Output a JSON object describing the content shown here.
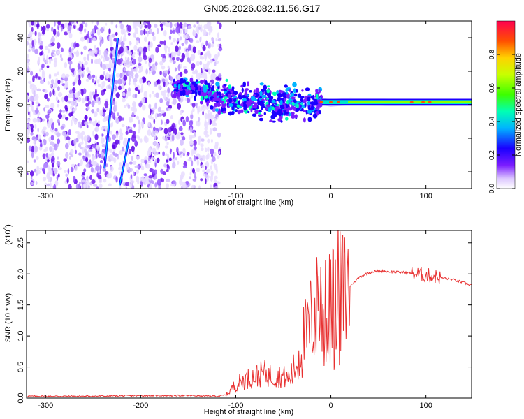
{
  "title": "GN05.2026.082.11.56.G17",
  "chart_data": [
    {
      "type": "heatmap",
      "name": "spectrogram",
      "xlabel": "Height of straight line (km)",
      "ylabel": "Frequency (Hz)",
      "xlim": [
        -320,
        148
      ],
      "ylim": [
        -50,
        50
      ],
      "xticks": [
        -300,
        -200,
        -100,
        0,
        100
      ],
      "yticks": [
        -40,
        -20,
        0,
        20,
        40
      ],
      "xtick_labels": [
        "-300",
        "-200",
        "-100",
        "0",
        "100"
      ],
      "ytick_labels": [
        "-40",
        "-20",
        "0",
        "20",
        "40"
      ],
      "noise_region_x": [
        -320,
        -122
      ],
      "signal_track": {
        "x": [
          -165,
          -140,
          -120,
          -100,
          -80,
          -60,
          -40,
          -25,
          -10,
          0,
          20,
          60,
          100,
          148
        ],
        "y": [
          11,
          9,
          4,
          3,
          2,
          0,
          1,
          -1,
          2,
          1,
          2,
          1.5,
          1.5,
          1.5
        ]
      },
      "streaks": [
        {
          "x": [
            -238,
            -224
          ],
          "y": [
            -38,
            40
          ]
        },
        {
          "x": [
            -222,
            -212
          ],
          "y": [
            -48,
            -20
          ]
        }
      ],
      "colorbar": {
        "label": "Normalized spectral amplitude",
        "range": [
          0,
          1
        ],
        "ticks": [
          0.0,
          0.2,
          0.4,
          0.6,
          0.8
        ],
        "tick_labels": [
          "0.0",
          "0.2",
          "0.4",
          "0.6",
          "0.8"
        ]
      }
    },
    {
      "type": "line",
      "name": "snr",
      "xlabel": "Height of straight line (km)",
      "ylabel": "SNR (10 * v/v)",
      "y_scale_label": "(x10",
      "y_scale_exponent": "4",
      "xlim": [
        -320,
        148
      ],
      "ylim": [
        0,
        2.7
      ],
      "xticks": [
        -300,
        -200,
        -100,
        0,
        100
      ],
      "yticks": [
        0.0,
        0.5,
        1.0,
        1.5,
        2.0,
        2.5
      ],
      "xtick_labels": [
        "-300",
        "-200",
        "-100",
        "0",
        "100"
      ],
      "ytick_labels": [
        "0.0",
        "0.5",
        "1.0",
        "1.5",
        "2.0",
        "2.5"
      ],
      "series": [
        {
          "name": "SNR",
          "color": "#e83030",
          "x": [
            -320,
            -250,
            -200,
            -150,
            -120,
            -110,
            -100,
            -90,
            -80,
            -70,
            -60,
            -50,
            -45,
            -40,
            -35,
            -30,
            -25,
            -20,
            -15,
            -10,
            -5,
            0,
            5,
            10,
            15,
            20,
            30,
            40,
            50,
            60,
            70,
            80,
            90,
            100,
            110,
            120,
            130,
            148
          ],
          "y": [
            0.03,
            0.03,
            0.04,
            0.04,
            0.03,
            0.05,
            0.22,
            0.3,
            0.35,
            0.4,
            0.35,
            0.35,
            0.3,
            0.4,
            0.6,
            0.9,
            1.0,
            1.3,
            1.4,
            1.5,
            1.3,
            1.5,
            1.4,
            1.6,
            1.7,
            1.8,
            1.95,
            2.02,
            2.05,
            2.04,
            2.03,
            2.02,
            2.0,
            1.98,
            1.96,
            1.93,
            1.9,
            1.82
          ]
        }
      ]
    }
  ]
}
